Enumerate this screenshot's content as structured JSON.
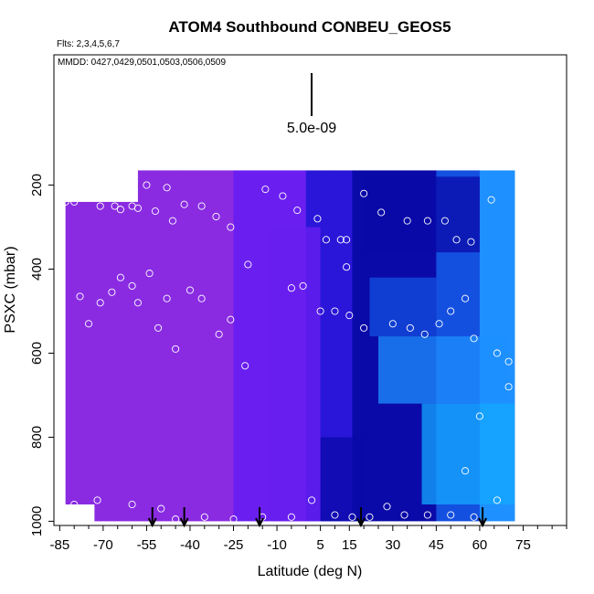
{
  "chart_data": {
    "type": "heatmap",
    "title": "ATOM4 Southbound CONBEU_GEOS5",
    "flights_note": "Flts: 2,3,4,5,6,7",
    "dates_note": "MMDD: 0427,0429,0501,0503,0506,0509",
    "xlabel": "Latitude (deg N)",
    "ylabel": "PSXC (mbar)",
    "xlim": [
      -87,
      90
    ],
    "ylim": [
      1010,
      -110
    ],
    "y_reversed": true,
    "x_ticks": [
      -85,
      -70,
      -55,
      -40,
      -25,
      -10,
      5,
      15,
      30,
      45,
      60,
      75
    ],
    "x_minor_ticks": [
      -80,
      -75,
      -65,
      -60,
      -50,
      -45,
      -35,
      -30,
      -20,
      -15,
      -5,
      0,
      10,
      20,
      25,
      35,
      40,
      50,
      55,
      65,
      70,
      80,
      85,
      90
    ],
    "y_ticks": [
      200,
      400,
      600,
      800,
      1000
    ],
    "scale_bar_label": "5.0e-09",
    "colors": {
      "violet": "#8a2be2",
      "purple": "#6a1ff0",
      "blue": "#2a16d8",
      "navy": "#0a0aa8",
      "royal": "#1450e0",
      "sky": "#1e90ff",
      "cyan": "#14a8ff",
      "marker": "#ffffff",
      "arrow": "#000000"
    },
    "columns": [
      {
        "x0": -83,
        "x1": -73,
        "ptop": 240,
        "pbot": 960,
        "c": "violet"
      },
      {
        "x0": -73,
        "x1": -58,
        "ptop": 240,
        "pbot": 1000,
        "c": "violet"
      },
      {
        "x0": -58,
        "x1": -44,
        "ptop": 165,
        "pbot": 1000,
        "c": "violet"
      },
      {
        "x0": -44,
        "x1": -25,
        "ptop": 165,
        "pbot": 1000,
        "c": "violet"
      },
      {
        "x0": -25,
        "x1": -12,
        "ptop": 165,
        "pbot": 1000,
        "c": "purple"
      },
      {
        "x0": -12,
        "x1": 0,
        "ptop": 165,
        "pbot": 1000,
        "c": "purple"
      },
      {
        "x0": 0,
        "x1": 8,
        "ptop": 165,
        "pbot": 1000,
        "c": "blue"
      },
      {
        "x0": 8,
        "x1": 16,
        "ptop": 165,
        "pbot": 1000,
        "c": "blue"
      },
      {
        "x0": 16,
        "x1": 28,
        "ptop": 165,
        "pbot": 1000,
        "c": "navy"
      },
      {
        "x0": 28,
        "x1": 45,
        "ptop": 165,
        "pbot": 1000,
        "c": "navy"
      },
      {
        "x0": 45,
        "x1": 60,
        "ptop": 165,
        "pbot": 1000,
        "c": "royal"
      },
      {
        "x0": 60,
        "x1": 72,
        "ptop": 165,
        "pbot": 1000,
        "c": "sky"
      }
    ],
    "patches": [
      {
        "x0": 20,
        "x1": 60,
        "p0": 180,
        "p1": 360,
        "c": "navy"
      },
      {
        "x0": 22,
        "x1": 45,
        "p0": 420,
        "p1": 560,
        "c": "royal"
      },
      {
        "x0": 25,
        "x1": 70,
        "p0": 560,
        "p1": 720,
        "c": "sky"
      },
      {
        "x0": 40,
        "x1": 72,
        "p0": 720,
        "p1": 960,
        "c": "cyan"
      },
      {
        "x0": 5,
        "x1": 20,
        "p0": 800,
        "p1": 1000,
        "c": "navy"
      },
      {
        "x0": -12,
        "x1": 5,
        "p0": 300,
        "p1": 1000,
        "c": "purple"
      }
    ],
    "scatter": [
      {
        "x": -83,
        "y": 240
      },
      {
        "x": -80,
        "y": 240
      },
      {
        "x": -71,
        "y": 250
      },
      {
        "x": -67,
        "y": 230
      },
      {
        "x": -66,
        "y": 250
      },
      {
        "x": -64,
        "y": 258
      },
      {
        "x": -60,
        "y": 250
      },
      {
        "x": -58,
        "y": 255
      },
      {
        "x": -55,
        "y": 200
      },
      {
        "x": -52,
        "y": 262
      },
      {
        "x": -48,
        "y": 206
      },
      {
        "x": -46,
        "y": 285
      },
      {
        "x": -42,
        "y": 246
      },
      {
        "x": -36,
        "y": 250
      },
      {
        "x": -31,
        "y": 275
      },
      {
        "x": -26,
        "y": 300
      },
      {
        "x": -20,
        "y": 389
      },
      {
        "x": -14,
        "y": 210
      },
      {
        "x": -8,
        "y": 226
      },
      {
        "x": -3,
        "y": 260
      },
      {
        "x": 4,
        "y": 280
      },
      {
        "x": 7,
        "y": 330
      },
      {
        "x": 12,
        "y": 330
      },
      {
        "x": 14,
        "y": 330
      },
      {
        "x": 14,
        "y": 395
      },
      {
        "x": 20,
        "y": 220
      },
      {
        "x": 26,
        "y": 265
      },
      {
        "x": 35,
        "y": 285
      },
      {
        "x": 42,
        "y": 285
      },
      {
        "x": 48,
        "y": 285
      },
      {
        "x": 52,
        "y": 330
      },
      {
        "x": 57,
        "y": 335
      },
      {
        "x": 64,
        "y": 235
      },
      {
        "x": -78,
        "y": 465
      },
      {
        "x": -75,
        "y": 530
      },
      {
        "x": -71,
        "y": 480
      },
      {
        "x": -67,
        "y": 455
      },
      {
        "x": -64,
        "y": 420
      },
      {
        "x": -60,
        "y": 440
      },
      {
        "x": -58,
        "y": 480
      },
      {
        "x": -54,
        "y": 410
      },
      {
        "x": -51,
        "y": 540
      },
      {
        "x": -48,
        "y": 470
      },
      {
        "x": -45,
        "y": 590
      },
      {
        "x": -40,
        "y": 450
      },
      {
        "x": -36,
        "y": 470
      },
      {
        "x": -30,
        "y": 555
      },
      {
        "x": -26,
        "y": 520
      },
      {
        "x": -21,
        "y": 630
      },
      {
        "x": -5,
        "y": 445
      },
      {
        "x": -1,
        "y": 440
      },
      {
        "x": 5,
        "y": 500
      },
      {
        "x": 10,
        "y": 500
      },
      {
        "x": 15,
        "y": 510
      },
      {
        "x": 20,
        "y": 540
      },
      {
        "x": 30,
        "y": 530
      },
      {
        "x": 36,
        "y": 540
      },
      {
        "x": 41,
        "y": 555
      },
      {
        "x": 46,
        "y": 530
      },
      {
        "x": 50,
        "y": 500
      },
      {
        "x": 55,
        "y": 470
      },
      {
        "x": 58,
        "y": 565
      },
      {
        "x": 66,
        "y": 600
      },
      {
        "x": 70,
        "y": 620
      },
      {
        "x": 70,
        "y": 680
      },
      {
        "x": 60,
        "y": 750
      },
      {
        "x": 55,
        "y": 880
      },
      {
        "x": -80,
        "y": 960
      },
      {
        "x": -72,
        "y": 950
      },
      {
        "x": -60,
        "y": 960
      },
      {
        "x": -50,
        "y": 970
      },
      {
        "x": -45,
        "y": 995
      },
      {
        "x": -35,
        "y": 990
      },
      {
        "x": -25,
        "y": 995
      },
      {
        "x": -15,
        "y": 990
      },
      {
        "x": -5,
        "y": 990
      },
      {
        "x": 2,
        "y": 950
      },
      {
        "x": 10,
        "y": 985
      },
      {
        "x": 16,
        "y": 990
      },
      {
        "x": 22,
        "y": 990
      },
      {
        "x": 28,
        "y": 965
      },
      {
        "x": 34,
        "y": 985
      },
      {
        "x": 42,
        "y": 985
      },
      {
        "x": 50,
        "y": 985
      },
      {
        "x": 58,
        "y": 990
      },
      {
        "x": 66,
        "y": 950
      }
    ],
    "arrows_x": [
      -53,
      -42,
      -16,
      19,
      61
    ]
  }
}
